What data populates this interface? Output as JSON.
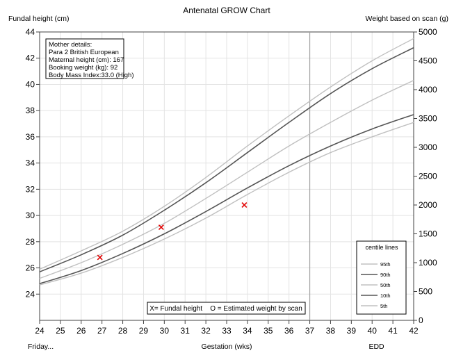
{
  "chart_data": {
    "type": "line",
    "title": "Antenatal GROW Chart",
    "ylabel": "Fundal height (cm)",
    "y2label": "Weight based on scan (g)",
    "xlabel": "Gestation (wks)",
    "x_left_note": "Friday...",
    "edd_label": "EDD",
    "edd_week": 37,
    "xlim": [
      24,
      42
    ],
    "ylim": [
      22,
      44
    ],
    "y2lim": [
      0,
      5000
    ],
    "x_ticks": [
      24,
      25,
      26,
      27,
      28,
      29,
      30,
      31,
      32,
      33,
      34,
      35,
      36,
      37,
      38,
      39,
      40,
      41,
      42
    ],
    "y_ticks": [
      24,
      26,
      28,
      30,
      32,
      34,
      36,
      38,
      40,
      42,
      44
    ],
    "y2_ticks": [
      0,
      500,
      1000,
      1500,
      2000,
      2500,
      3000,
      3500,
      4000,
      4500,
      5000
    ],
    "grid": true,
    "x": [
      24,
      26,
      28,
      30,
      32,
      34,
      36,
      38,
      40,
      42
    ],
    "series": [
      {
        "name": "95th",
        "color": "#c0c0c0",
        "values": [
          25.9,
          27.3,
          28.8,
          30.7,
          32.9,
          35.3,
          37.6,
          39.8,
          41.8,
          43.5
        ]
      },
      {
        "name": "90th",
        "color": "#555555",
        "values": [
          25.7,
          27.0,
          28.5,
          30.4,
          32.5,
          34.8,
          37.1,
          39.3,
          41.2,
          42.8
        ]
      },
      {
        "name": "50th",
        "color": "#c0c0c0",
        "values": [
          25.2,
          26.4,
          27.8,
          29.4,
          31.3,
          33.3,
          35.3,
          37.1,
          38.8,
          40.3
        ]
      },
      {
        "name": "10th",
        "color": "#555555",
        "values": [
          24.8,
          25.8,
          27.1,
          28.6,
          30.3,
          32.1,
          33.8,
          35.3,
          36.6,
          37.7
        ]
      },
      {
        "name": "5th",
        "color": "#c0c0c0",
        "values": [
          24.7,
          25.6,
          26.8,
          28.2,
          29.8,
          31.6,
          33.3,
          34.8,
          36.0,
          37.1
        ]
      }
    ],
    "fundal_measurements": [
      {
        "x": 26.9,
        "y": 26.8
      },
      {
        "x": 29.85,
        "y": 29.1
      },
      {
        "x": 33.85,
        "y": 30.8
      }
    ],
    "marker_color": "#e00000",
    "legend_title": "centile lines",
    "legend_placement": "bottom-right",
    "key_text": "X= Fundal height    O = Estimated weight by scan",
    "mother_details": [
      "Mother details:",
      "Para 2  British European",
      "Maternal height (cm): 167",
      "Booking weight (kg): 92",
      "Body Mass Index:33.0 (High)"
    ]
  }
}
